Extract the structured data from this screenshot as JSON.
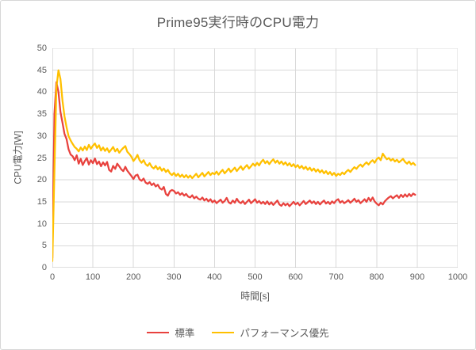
{
  "chart": {
    "title": "Prime95実行時のCPU電力",
    "x_axis_title": "時間[s]",
    "y_axis_title": "CPU電力[W]"
  },
  "colors": {
    "grid": "#d9d9d9",
    "axis": "#bfbfbf",
    "text": "#595959",
    "background": "#ffffff",
    "series_standard": "#e8423e",
    "series_performance": "#ffc000"
  },
  "chart_data": {
    "type": "line",
    "title": "Prime95実行時のCPU電力",
    "xlabel": "時間[s]",
    "ylabel": "CPU電力[W]",
    "xlim": [
      0,
      1000
    ],
    "ylim": [
      0,
      50
    ],
    "x_ticks": [
      0,
      100,
      200,
      300,
      400,
      500,
      600,
      700,
      800,
      900,
      1000
    ],
    "y_ticks": [
      0,
      5,
      10,
      15,
      20,
      25,
      30,
      35,
      40,
      45,
      50
    ],
    "grid": true,
    "legend_position": "bottom",
    "x": [
      0,
      5,
      10,
      15,
      20,
      25,
      30,
      35,
      40,
      45,
      50,
      55,
      60,
      65,
      70,
      75,
      80,
      85,
      90,
      95,
      100,
      105,
      110,
      115,
      120,
      125,
      130,
      135,
      140,
      145,
      150,
      155,
      160,
      165,
      170,
      175,
      180,
      185,
      190,
      195,
      200,
      205,
      210,
      215,
      220,
      225,
      230,
      235,
      240,
      245,
      250,
      255,
      260,
      265,
      270,
      275,
      280,
      285,
      290,
      295,
      300,
      305,
      310,
      315,
      320,
      325,
      330,
      335,
      340,
      345,
      350,
      355,
      360,
      365,
      370,
      375,
      380,
      385,
      390,
      395,
      400,
      405,
      410,
      415,
      420,
      425,
      430,
      435,
      440,
      445,
      450,
      455,
      460,
      465,
      470,
      475,
      480,
      485,
      490,
      495,
      500,
      505,
      510,
      515,
      520,
      525,
      530,
      535,
      540,
      545,
      550,
      555,
      560,
      565,
      570,
      575,
      580,
      585,
      590,
      595,
      600,
      605,
      610,
      615,
      620,
      625,
      630,
      635,
      640,
      645,
      650,
      655,
      660,
      665,
      670,
      675,
      680,
      685,
      690,
      695,
      700,
      705,
      710,
      715,
      720,
      725,
      730,
      735,
      740,
      745,
      750,
      755,
      760,
      765,
      770,
      775,
      780,
      785,
      790,
      795,
      800,
      805,
      810,
      815,
      820,
      825,
      830,
      835,
      840,
      845,
      850,
      855,
      860,
      865,
      870,
      875,
      880,
      885,
      890,
      895
    ],
    "series": [
      {
        "name": "標準",
        "color": "#e8423e",
        "values": [
          2.2,
          35.0,
          42.3,
          40.0,
          35.5,
          33.0,
          30.5,
          29.3,
          27.0,
          25.8,
          25.4,
          24.5,
          25.6,
          23.7,
          24.8,
          23.4,
          24.3,
          25.0,
          23.5,
          24.5,
          23.8,
          24.9,
          23.6,
          24.2,
          23.1,
          24.0,
          23.3,
          24.1,
          22.3,
          21.9,
          23.2,
          22.5,
          23.7,
          23.1,
          22.4,
          22.0,
          23.0,
          22.1,
          21.5,
          20.9,
          20.2,
          21.0,
          21.2,
          20.1,
          19.8,
          20.3,
          19.4,
          19.1,
          19.5,
          18.8,
          19.2,
          18.5,
          18.9,
          18.1,
          17.8,
          18.4,
          16.8,
          16.4,
          17.4,
          17.7,
          17.5,
          16.9,
          17.2,
          16.6,
          17.0,
          16.4,
          16.8,
          16.2,
          16.0,
          16.5,
          15.8,
          16.2,
          15.7,
          15.5,
          16.0,
          15.3,
          15.7,
          15.1,
          15.6,
          14.9,
          15.3,
          14.7,
          15.1,
          15.5,
          14.8,
          15.2,
          15.9,
          14.9,
          14.6,
          15.3,
          14.8,
          15.7,
          15.0,
          14.7,
          15.2,
          14.5,
          15.0,
          15.5,
          14.7,
          15.1,
          15.6,
          14.8,
          15.2,
          14.6,
          15.0,
          14.5,
          15.1,
          14.4,
          14.9,
          14.3,
          14.8,
          15.3,
          14.4,
          14.1,
          14.7,
          14.2,
          14.6,
          14.0,
          14.5,
          15.0,
          14.4,
          14.8,
          14.2,
          14.7,
          15.2,
          14.5,
          14.9,
          15.3,
          14.7,
          15.1,
          14.5,
          15.0,
          14.4,
          14.9,
          15.3,
          14.6,
          15.0,
          14.5,
          15.1,
          14.7,
          15.3,
          15.6,
          14.8,
          15.2,
          14.7,
          15.0,
          15.4,
          14.8,
          15.2,
          15.7,
          15.0,
          15.4,
          14.7,
          15.1,
          15.6,
          15.0,
          15.9,
          15.2,
          16.0,
          15.1,
          14.6,
          14.2,
          14.8,
          14.4,
          15.1,
          15.6,
          16.0,
          16.3,
          15.8,
          16.2,
          16.5,
          15.9,
          16.6,
          16.1,
          16.7,
          16.2,
          16.8,
          16.3,
          16.9,
          16.6
        ]
      },
      {
        "name": "パフォーマンス優先",
        "color": "#ffc000",
        "values": [
          1.5,
          22.0,
          41.0,
          45.0,
          43.0,
          38.0,
          34.5,
          32.0,
          30.0,
          29.0,
          28.2,
          27.5,
          27.1,
          26.5,
          27.4,
          26.7,
          27.6,
          26.8,
          28.0,
          27.1,
          27.8,
          28.3,
          27.3,
          27.9,
          26.7,
          27.4,
          26.6,
          27.2,
          26.3,
          26.9,
          27.5,
          26.5,
          27.1,
          26.2,
          26.8,
          27.3,
          27.7,
          26.4,
          25.9,
          25.3,
          24.3,
          24.9,
          25.7,
          24.5,
          23.9,
          24.5,
          23.6,
          23.2,
          23.8,
          23.0,
          22.6,
          23.2,
          22.4,
          22.9,
          22.1,
          22.6,
          21.8,
          22.3,
          21.5,
          21.1,
          21.6,
          20.9,
          21.4,
          20.7,
          21.2,
          20.6,
          21.1,
          20.5,
          21.0,
          20.4,
          20.9,
          21.4,
          20.6,
          21.1,
          21.6,
          20.8,
          21.3,
          21.8,
          21.1,
          21.6,
          21.3,
          21.9,
          21.2,
          21.8,
          22.3,
          21.5,
          22.0,
          22.6,
          21.8,
          22.3,
          22.8,
          22.0,
          22.6,
          23.1,
          22.3,
          22.9,
          23.4,
          22.6,
          23.1,
          23.7,
          23.2,
          23.9,
          23.3,
          24.1,
          24.6,
          23.8,
          24.3,
          23.6,
          24.2,
          24.7,
          23.9,
          24.4,
          23.7,
          24.2,
          23.5,
          24.0,
          23.3,
          23.8,
          23.1,
          23.6,
          22.9,
          23.4,
          22.7,
          23.2,
          22.5,
          23.0,
          22.3,
          22.8,
          22.1,
          22.6,
          21.9,
          22.4,
          21.7,
          22.2,
          21.5,
          22.0,
          21.3,
          21.8,
          21.1,
          21.6,
          20.9,
          21.4,
          21.1,
          21.7,
          21.3,
          21.9,
          22.3,
          21.8,
          22.4,
          22.9,
          22.5,
          23.1,
          23.5,
          23.0,
          23.6,
          24.0,
          23.5,
          24.1,
          24.5,
          23.9,
          24.7,
          25.1,
          24.5,
          26.0,
          25.3,
          24.7,
          25.0,
          24.4,
          24.8,
          24.2,
          24.6,
          24.0,
          24.4,
          24.8,
          24.1,
          23.7,
          24.2,
          23.5,
          23.9,
          23.4
        ]
      }
    ]
  }
}
